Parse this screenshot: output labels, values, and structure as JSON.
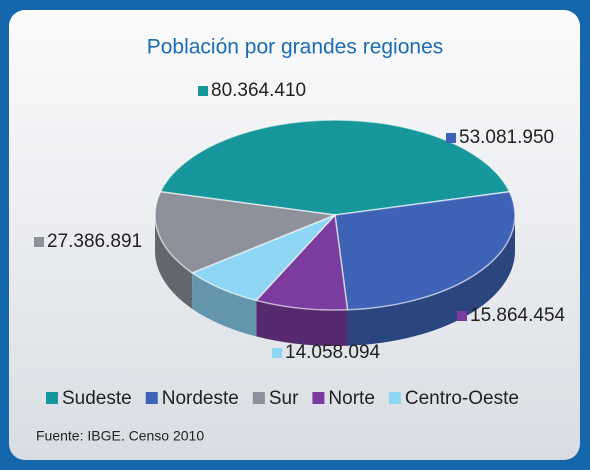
{
  "chart_data": {
    "type": "pie",
    "title": "Población por grandes regiones",
    "categories": [
      "Sudeste",
      "Nordeste",
      "Sur",
      "Norte",
      "Centro-Oeste"
    ],
    "values": [
      80364410,
      53081950,
      27386891,
      15864454,
      14058094
    ],
    "value_labels": [
      "80.364.410",
      "53.081.950",
      "27.386.891",
      "15.864.454",
      "14.058.094"
    ],
    "colors": [
      "#17979c",
      "#3d62b6",
      "#8c919b",
      "#7a3c9f",
      "#8fd6f4"
    ],
    "legend": "bottom",
    "source": "Fuente: IBGE. Censo 2010"
  }
}
